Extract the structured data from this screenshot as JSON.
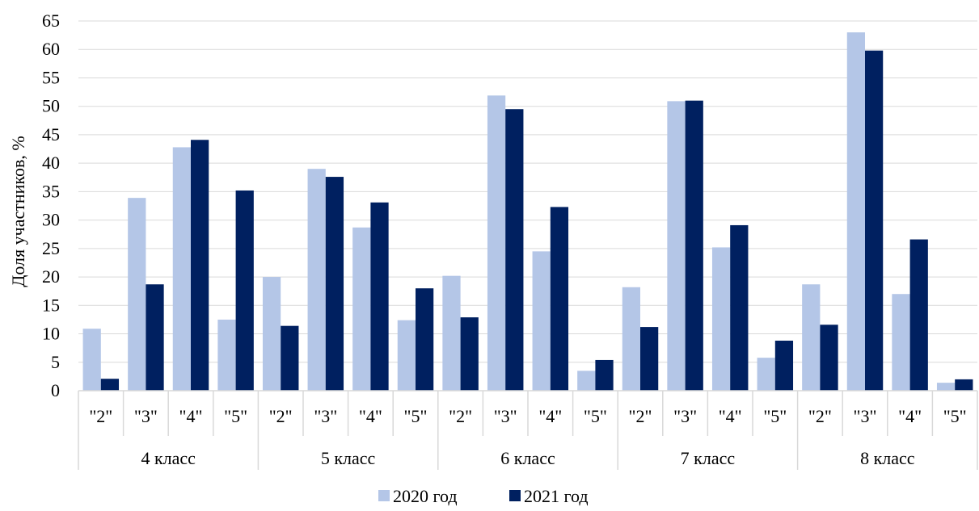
{
  "chart_data": {
    "type": "bar",
    "ylabel": "Доля участников, %",
    "ylim": [
      0,
      65
    ],
    "ytick_step": 5,
    "grid": true,
    "legend_position": "bottom",
    "groups": [
      {
        "label": "4 класс",
        "categories": [
          "\"2\"",
          "\"3\"",
          "\"4\"",
          "\"5\""
        ]
      },
      {
        "label": "5 класс",
        "categories": [
          "\"2\"",
          "\"3\"",
          "\"4\"",
          "\"5\""
        ]
      },
      {
        "label": "6 класс",
        "categories": [
          "\"2\"",
          "\"3\"",
          "\"4\"",
          "\"5\""
        ]
      },
      {
        "label": "7 класс",
        "categories": [
          "\"2\"",
          "\"3\"",
          "\"4\"",
          "\"5\""
        ]
      },
      {
        "label": "8 класс",
        "categories": [
          "\"2\"",
          "\"3\"",
          "\"4\"",
          "\"5\""
        ]
      }
    ],
    "series": [
      {
        "name": "2020 год",
        "color": "#b4c6e7",
        "values": [
          10.9,
          33.9,
          42.8,
          12.5,
          20.0,
          39.0,
          28.7,
          12.4,
          20.2,
          51.9,
          24.5,
          3.5,
          18.2,
          50.9,
          25.2,
          5.8,
          18.7,
          63.0,
          17.0,
          1.4
        ]
      },
      {
        "name": "2021 год",
        "color": "#002060",
        "values": [
          2.1,
          18.7,
          44.1,
          35.2,
          11.4,
          37.6,
          33.1,
          18.0,
          12.9,
          49.5,
          32.3,
          5.4,
          11.2,
          51.0,
          29.1,
          8.8,
          11.6,
          59.8,
          26.6,
          2.0
        ]
      }
    ]
  }
}
